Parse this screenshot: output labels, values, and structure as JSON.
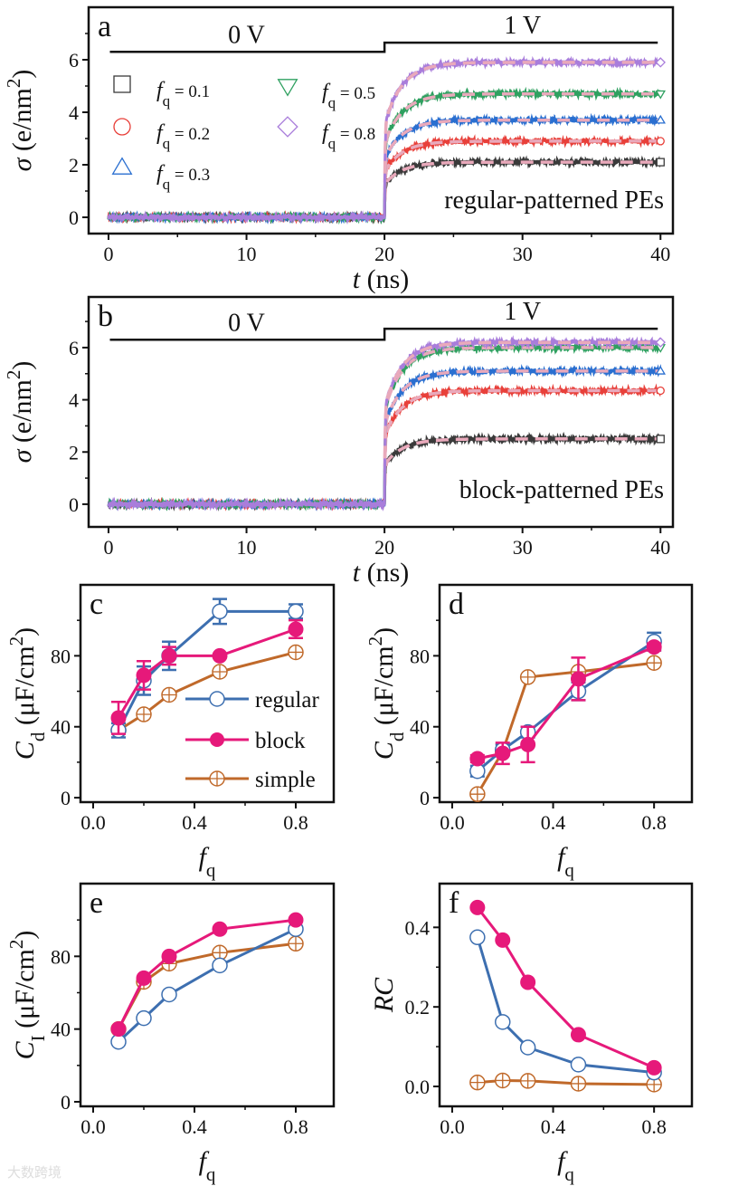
{
  "watermark": "大数跨境",
  "colors": {
    "fq_0.1": "#3a3a3a",
    "fq_0.2": "#e8403a",
    "fq_0.3": "#2a6fd0",
    "fq_0.5": "#2fa060",
    "fq_0.8": "#a97ddb",
    "fit": "#e9a9bb",
    "regular": "#3d6fb0",
    "block": "#e6197a",
    "simple": "#c0692a"
  },
  "chart_data": [
    {
      "panel": "a",
      "type": "line",
      "annotation": "regular-patterned PEs",
      "voltage_labels": [
        "0 V",
        "1 V"
      ],
      "voltage_switch_time": 20,
      "xlabel": {
        "pre": "t",
        "sub": "",
        "mid": " (ns)",
        "sup": "",
        "post": ""
      },
      "ylabel": {
        "pre": "σ",
        "sub": "",
        "mid": " (e/nm",
        "sup": "2",
        "post": ")"
      },
      "xlim": [
        -1.44,
        40.9
      ],
      "ylim": [
        -0.62,
        8.0
      ],
      "xticks": [
        "0",
        "10",
        "20",
        "30",
        "40"
      ],
      "yticks": [
        "0",
        "2",
        "4",
        "6"
      ],
      "series": [
        {
          "name": "fq = 0.1",
          "fq": "0.1",
          "marker": "square",
          "plateau": 2.1
        },
        {
          "name": "fq = 0.2",
          "fq": "0.2",
          "marker": "circle",
          "plateau": 2.9
        },
        {
          "name": "fq = 0.3",
          "fq": "0.3",
          "marker": "triangle-up",
          "plateau": 3.7
        },
        {
          "name": "fq = 0.5",
          "fq": "0.5",
          "marker": "triangle-down",
          "plateau": 4.7
        },
        {
          "name": "fq = 0.8",
          "fq": "0.8",
          "marker": "diamond",
          "plateau": 5.9
        }
      ],
      "legend_labels": [
        {
          "f": "f",
          "sub": "q",
          "rest": " = 0.1"
        },
        {
          "f": "f",
          "sub": "q",
          "rest": " = 0.2"
        },
        {
          "f": "f",
          "sub": "q",
          "rest": " = 0.3"
        },
        {
          "f": "f",
          "sub": "q",
          "rest": " = 0.5"
        },
        {
          "f": "f",
          "sub": "q",
          "rest": " = 0.8"
        }
      ]
    },
    {
      "panel": "b",
      "type": "line",
      "annotation": "block-patterned PEs",
      "voltage_labels": [
        "0 V",
        "1 V"
      ],
      "voltage_switch_time": 20,
      "xlabel": {
        "pre": "t",
        "sub": "",
        "mid": " (ns)",
        "sup": "",
        "post": ""
      },
      "ylabel": {
        "pre": "σ",
        "sub": "",
        "mid": " (e/nm",
        "sup": "2",
        "post": ")"
      },
      "xlim": [
        -1.44,
        40.9
      ],
      "ylim": [
        -0.87,
        7.94
      ],
      "xticks": [
        "0",
        "10",
        "20",
        "30",
        "40"
      ],
      "yticks": [
        "0",
        "2",
        "4",
        "6"
      ],
      "series": [
        {
          "name": "fq = 0.1",
          "fq": "0.1",
          "marker": "square",
          "plateau": 2.5
        },
        {
          "name": "fq = 0.2",
          "fq": "0.2",
          "marker": "circle",
          "plateau": 4.35
        },
        {
          "name": "fq = 0.3",
          "fq": "0.3",
          "marker": "triangle-up",
          "plateau": 5.1
        },
        {
          "name": "fq = 0.5",
          "fq": "0.5",
          "marker": "triangle-down",
          "plateau": 6.0
        },
        {
          "name": "fq = 0.8",
          "fq": "0.8",
          "marker": "diamond",
          "plateau": 6.2
        }
      ]
    },
    {
      "panel": "c",
      "type": "line",
      "xlabel": {
        "pre": "f",
        "sub": "q",
        "mid": "",
        "sup": "",
        "post": ""
      },
      "ylabel": {
        "pre": "C",
        "sub": "d",
        "mid": " (μF/cm",
        "sup": "2",
        "post": ")"
      },
      "xlim": [
        -0.05,
        0.95
      ],
      "ylim": [
        -2.5,
        120
      ],
      "xticks": [
        "0.0",
        "0.4",
        "0.8"
      ],
      "yticks": [
        "0",
        "40",
        "80"
      ],
      "x": [
        0.1,
        0.2,
        0.3,
        0.5,
        0.8
      ],
      "legend": [
        "regular",
        "block",
        "simple"
      ],
      "series": [
        {
          "name": "regular",
          "values": [
            38,
            66,
            80,
            105,
            105
          ],
          "errors": [
            4,
            8,
            8,
            7,
            4
          ]
        },
        {
          "name": "block",
          "values": [
            45,
            69,
            80,
            80,
            95
          ],
          "errors": [
            9,
            8,
            5,
            1,
            5
          ]
        },
        {
          "name": "simple",
          "values": [
            38,
            47,
            58,
            71,
            82
          ],
          "errors": [
            0,
            0,
            0,
            0,
            0
          ]
        }
      ]
    },
    {
      "panel": "d",
      "type": "line",
      "xlabel": {
        "pre": "f",
        "sub": "q",
        "mid": "",
        "sup": "",
        "post": ""
      },
      "ylabel": {
        "pre": "C",
        "sub": "d",
        "mid": " (μF/cm",
        "sup": "2",
        "post": ")"
      },
      "xlim": [
        -0.05,
        0.95
      ],
      "ylim": [
        -2.5,
        120
      ],
      "xticks": [
        "0.0",
        "0.4",
        "0.8"
      ],
      "yticks": [
        "0",
        "40",
        "80"
      ],
      "x": [
        0.1,
        0.2,
        0.3,
        0.5,
        0.8
      ],
      "series": [
        {
          "name": "regular",
          "values": [
            15,
            27,
            37,
            60,
            88
          ],
          "errors": [
            3,
            3,
            3,
            5,
            5
          ]
        },
        {
          "name": "block",
          "values": [
            22,
            25,
            30,
            67,
            85
          ],
          "errors": [
            2,
            6,
            10,
            12,
            2
          ]
        },
        {
          "name": "simple",
          "values": [
            2,
            26,
            68,
            71,
            76
          ],
          "errors": [
            0,
            0,
            0,
            0,
            0
          ]
        }
      ]
    },
    {
      "panel": "e",
      "type": "line",
      "xlabel": {
        "pre": "f",
        "sub": "q",
        "mid": "",
        "sup": "",
        "post": ""
      },
      "ylabel": {
        "pre": "C",
        "sub": "I",
        "mid": " (μF/cm",
        "sup": "2",
        "post": ")"
      },
      "xlim": [
        -0.05,
        0.95
      ],
      "ylim": [
        -2.5,
        120
      ],
      "xticks": [
        "0.0",
        "0.4",
        "0.8"
      ],
      "yticks": [
        "0",
        "40",
        "80"
      ],
      "x": [
        0.1,
        0.2,
        0.3,
        0.5,
        0.8
      ],
      "series": [
        {
          "name": "regular",
          "values": [
            33,
            46,
            59,
            75,
            95
          ],
          "errors": [
            0,
            0,
            0,
            0,
            0
          ]
        },
        {
          "name": "block",
          "values": [
            40,
            68,
            80,
            95,
            100
          ],
          "errors": [
            0,
            0,
            0,
            0,
            0
          ]
        },
        {
          "name": "simple",
          "values": [
            40,
            66,
            76,
            82,
            87
          ],
          "errors": [
            0,
            0,
            0,
            0,
            0
          ]
        }
      ]
    },
    {
      "panel": "f",
      "type": "line",
      "xlabel": {
        "pre": "f",
        "sub": "q",
        "mid": "",
        "sup": "",
        "post": ""
      },
      "ylabel": {
        "pre": "RC",
        "sub": "",
        "mid": "",
        "sup": "",
        "post": ""
      },
      "xlim": [
        -0.05,
        0.95
      ],
      "ylim": [
        -0.05,
        0.51
      ],
      "xticks": [
        "0.0",
        "0.4",
        "0.8"
      ],
      "yticks": [
        "0.0",
        "0.2",
        "0.4"
      ],
      "x": [
        0.1,
        0.2,
        0.3,
        0.5,
        0.8
      ],
      "series": [
        {
          "name": "regular",
          "values": [
            0.375,
            0.162,
            0.098,
            0.055,
            0.035
          ],
          "errors": [
            0,
            0,
            0,
            0,
            0
          ]
        },
        {
          "name": "block",
          "values": [
            0.45,
            0.368,
            0.262,
            0.13,
            0.047
          ],
          "errors": [
            0,
            0,
            0,
            0,
            0
          ]
        },
        {
          "name": "simple",
          "values": [
            0.01,
            0.015,
            0.014,
            0.007,
            0.005
          ],
          "errors": [
            0,
            0,
            0,
            0,
            0
          ]
        }
      ]
    }
  ]
}
